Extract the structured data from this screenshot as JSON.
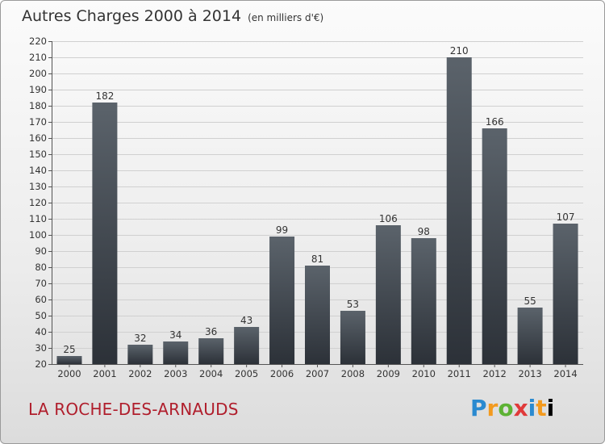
{
  "header": {
    "title": "Autres Charges 2000 à 2014",
    "subtitle": "(en milliers d'€)"
  },
  "footer": {
    "commune": "LA ROCHE-DES-ARNAUDS",
    "logo_text": "Proxiti"
  },
  "colors": {
    "bar_top": "#5b636b",
    "bar_bottom": "#2c3138",
    "commune": "#b01e2c"
  },
  "chart_data": {
    "type": "bar",
    "title": "Autres Charges 2000 à 2014",
    "subtitle": "(en milliers d'€)",
    "xlabel": "",
    "ylabel": "",
    "categories": [
      "2000",
      "2001",
      "2002",
      "2003",
      "2004",
      "2005",
      "2006",
      "2007",
      "2008",
      "2009",
      "2010",
      "2011",
      "2012",
      "2013",
      "2014"
    ],
    "values": [
      25,
      182,
      32,
      34,
      36,
      43,
      99,
      81,
      53,
      106,
      98,
      210,
      166,
      55,
      107
    ],
    "ylim": [
      20,
      220
    ],
    "yticks": [
      20,
      30,
      40,
      50,
      60,
      70,
      80,
      90,
      100,
      110,
      120,
      130,
      140,
      150,
      160,
      170,
      180,
      190,
      200,
      210,
      220
    ],
    "grid": true,
    "legend": "none"
  }
}
